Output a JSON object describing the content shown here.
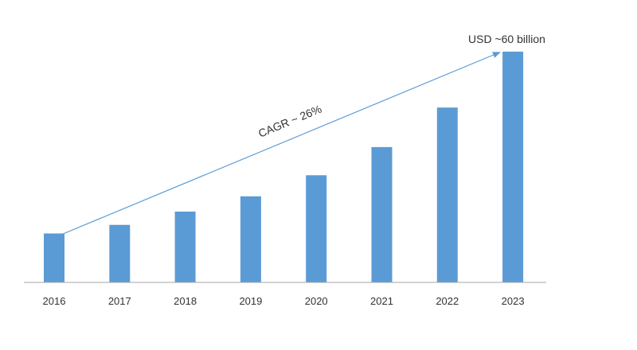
{
  "chart_data": {
    "type": "bar",
    "title": "",
    "xlabel": "",
    "ylabel": "",
    "categories": [
      "2016",
      "2017",
      "2018",
      "2019",
      "2020",
      "2021",
      "2022",
      "2023"
    ],
    "series": [
      {
        "values": [
          12.5,
          14.7,
          18.1,
          22.0,
          27.4,
          34.6,
          44.7,
          59.0
        ]
      }
    ],
    "ylim": [
      0,
      60
    ],
    "grid": false,
    "legend": "none",
    "colors": {
      "bar": "#5b9bd5",
      "axis": "#a6a6a6",
      "arrow": "#5b9bd5"
    },
    "annotations": {
      "cagr": "CAGR ~ 26%",
      "end_value": "USD ~60 billion"
    }
  }
}
